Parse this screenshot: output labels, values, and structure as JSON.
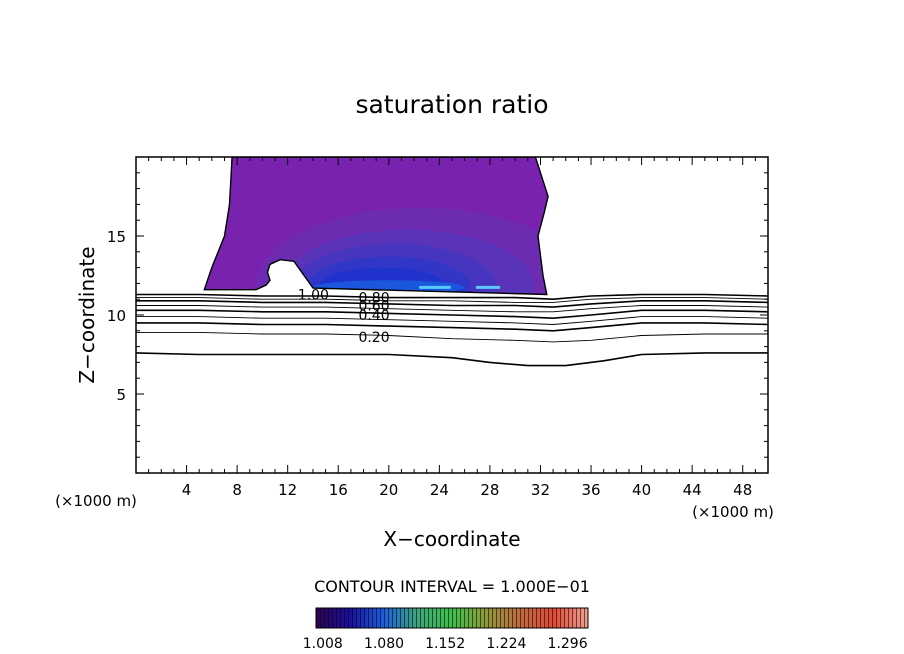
{
  "chart_data": {
    "type": "heatmap",
    "title": "saturation ratio",
    "xlabel": "X−coordinate",
    "ylabel": "Z−coordinate",
    "x_unit_left": "(×1000 m)",
    "x_unit_right": "(×1000 m)",
    "xlim": [
      0,
      50
    ],
    "ylim": [
      0,
      20
    ],
    "x_ticks": [
      4,
      8,
      12,
      16,
      20,
      24,
      28,
      32,
      36,
      40,
      44,
      48
    ],
    "y_ticks": [
      5,
      10,
      15
    ],
    "contour_interval_label": "CONTOUR INTERVAL = 1.000E−01",
    "colorbar_labels": [
      "1.008",
      "1.080",
      "1.152",
      "1.224",
      "1.296"
    ],
    "colorbar_range": [
      1.0,
      1.32
    ],
    "contour_labels": [
      {
        "text": "1.00",
        "x": 12.8,
        "z": 11.3
      },
      {
        "text": "0.80",
        "x": 17.6,
        "z": 11.1
      },
      {
        "text": "0.60",
        "x": 17.6,
        "z": 10.6
      },
      {
        "text": "0.40",
        "x": 17.6,
        "z": 10.0
      },
      {
        "text": "0.20",
        "x": 17.6,
        "z": 8.6
      }
    ],
    "contours": [
      {
        "level": 1.0,
        "points": [
          [
            0,
            11.3
          ],
          [
            5,
            11.3
          ],
          [
            10,
            11.2
          ],
          [
            15,
            11.2
          ],
          [
            20,
            11.1
          ],
          [
            25,
            11.1
          ],
          [
            30,
            11.1
          ],
          [
            33,
            11.0
          ],
          [
            36,
            11.2
          ],
          [
            40,
            11.3
          ],
          [
            45,
            11.3
          ],
          [
            50,
            11.2
          ]
        ]
      },
      {
        "level": 0.9,
        "points": [
          [
            0,
            11.1
          ],
          [
            5,
            11.1
          ],
          [
            10,
            11.0
          ],
          [
            15,
            11.0
          ],
          [
            20,
            10.9
          ],
          [
            25,
            10.9
          ],
          [
            30,
            10.8
          ],
          [
            33,
            10.8
          ],
          [
            36,
            11.0
          ],
          [
            40,
            11.1
          ],
          [
            45,
            11.1
          ],
          [
            50,
            11.0
          ]
        ]
      },
      {
        "level": 0.8,
        "points": [
          [
            0,
            10.9
          ],
          [
            5,
            10.9
          ],
          [
            10,
            10.8
          ],
          [
            15,
            10.8
          ],
          [
            20,
            10.7
          ],
          [
            25,
            10.6
          ],
          [
            30,
            10.6
          ],
          [
            33,
            10.5
          ],
          [
            36,
            10.7
          ],
          [
            40,
            10.9
          ],
          [
            45,
            10.9
          ],
          [
            50,
            10.8
          ]
        ]
      },
      {
        "level": 0.7,
        "points": [
          [
            0,
            10.6
          ],
          [
            5,
            10.6
          ],
          [
            10,
            10.5
          ],
          [
            15,
            10.5
          ],
          [
            20,
            10.4
          ],
          [
            25,
            10.3
          ],
          [
            30,
            10.2
          ],
          [
            33,
            10.2
          ],
          [
            36,
            10.4
          ],
          [
            40,
            10.6
          ],
          [
            45,
            10.6
          ],
          [
            50,
            10.5
          ]
        ]
      },
      {
        "level": 0.6,
        "points": [
          [
            0,
            10.3
          ],
          [
            5,
            10.3
          ],
          [
            10,
            10.2
          ],
          [
            15,
            10.2
          ],
          [
            20,
            10.1
          ],
          [
            25,
            10.0
          ],
          [
            30,
            9.9
          ],
          [
            33,
            9.8
          ],
          [
            36,
            10.0
          ],
          [
            40,
            10.3
          ],
          [
            45,
            10.3
          ],
          [
            50,
            10.2
          ]
        ]
      },
      {
        "level": 0.5,
        "points": [
          [
            0,
            9.9
          ],
          [
            5,
            9.9
          ],
          [
            10,
            9.8
          ],
          [
            15,
            9.8
          ],
          [
            20,
            9.7
          ],
          [
            25,
            9.6
          ],
          [
            30,
            9.5
          ],
          [
            33,
            9.4
          ],
          [
            36,
            9.6
          ],
          [
            40,
            9.9
          ],
          [
            45,
            9.9
          ],
          [
            50,
            9.8
          ]
        ]
      },
      {
        "level": 0.4,
        "points": [
          [
            0,
            9.5
          ],
          [
            5,
            9.5
          ],
          [
            10,
            9.4
          ],
          [
            15,
            9.4
          ],
          [
            20,
            9.3
          ],
          [
            25,
            9.2
          ],
          [
            30,
            9.1
          ],
          [
            33,
            9.0
          ],
          [
            36,
            9.2
          ],
          [
            40,
            9.5
          ],
          [
            45,
            9.5
          ],
          [
            50,
            9.4
          ]
        ]
      },
      {
        "level": 0.3,
        "points": [
          [
            0,
            8.9
          ],
          [
            5,
            8.9
          ],
          [
            10,
            8.8
          ],
          [
            15,
            8.8
          ],
          [
            20,
            8.7
          ],
          [
            25,
            8.5
          ],
          [
            30,
            8.4
          ],
          [
            33,
            8.3
          ],
          [
            36,
            8.4
          ],
          [
            40,
            8.7
          ],
          [
            45,
            8.8
          ],
          [
            50,
            8.8
          ]
        ]
      },
      {
        "level": 0.2,
        "points": [
          [
            0,
            7.6
          ],
          [
            5,
            7.5
          ],
          [
            10,
            7.5
          ],
          [
            15,
            7.5
          ],
          [
            20,
            7.5
          ],
          [
            25,
            7.3
          ],
          [
            28,
            7.0
          ],
          [
            31,
            6.8
          ],
          [
            34,
            6.8
          ],
          [
            37,
            7.1
          ],
          [
            40,
            7.5
          ],
          [
            45,
            7.6
          ],
          [
            50,
            7.6
          ]
        ]
      }
    ],
    "region": {
      "boundary": [
        [
          7.6,
          20
        ],
        [
          7.4,
          17
        ],
        [
          7.0,
          15
        ],
        [
          6.0,
          13
        ],
        [
          5.4,
          11.6
        ],
        [
          9.5,
          11.6
        ],
        [
          10.3,
          11.9
        ],
        [
          10.6,
          12.2
        ],
        [
          10.4,
          12.7
        ],
        [
          10.6,
          13.2
        ],
        [
          11.4,
          13.5
        ],
        [
          12.5,
          13.4
        ],
        [
          14,
          11.7
        ],
        [
          32.5,
          11.3
        ],
        [
          32.2,
          12.5
        ],
        [
          31.8,
          15
        ],
        [
          32.3,
          16.5
        ],
        [
          32.6,
          17.5
        ],
        [
          32.0,
          19
        ],
        [
          31.6,
          20
        ]
      ],
      "cloud_top_color": "#7a22b0",
      "layers": [
        {
          "value": 1.02,
          "color": "#6d2bb2",
          "cx": 22.5,
          "cz": 11.8,
          "rx": 13.0,
          "rz": 5.0
        },
        {
          "value": 1.05,
          "color": "#5a34b8",
          "cx": 21.5,
          "cz": 11.8,
          "rx": 10.0,
          "rz": 3.6
        },
        {
          "value": 1.08,
          "color": "#4636bf",
          "cx": 20.5,
          "cz": 11.8,
          "rx": 8.0,
          "rz": 2.7
        },
        {
          "value": 1.11,
          "color": "#3136c6",
          "cx": 20.0,
          "cz": 11.8,
          "rx": 6.5,
          "rz": 1.9
        },
        {
          "value": 1.14,
          "color": "#1f33cc",
          "cx": 19.5,
          "cz": 11.8,
          "rx": 5.0,
          "rz": 1.2
        },
        {
          "value": 1.17,
          "color": "#1a57dd",
          "cx": 20.0,
          "cz": 11.75,
          "rx": 6.0,
          "rz": 0.45
        }
      ],
      "streaks": [
        {
          "color": "#5ac8ff",
          "x0": 22.5,
          "x1": 24.8,
          "z": 11.75
        },
        {
          "color": "#5ac8ff",
          "x0": 27.0,
          "x1": 28.7,
          "z": 11.75
        }
      ]
    },
    "colorbar_stops": [
      "#300050",
      "#1a10a0",
      "#1d5fe0",
      "#3fa57a",
      "#3fc04a",
      "#8e9a3a",
      "#c06a40",
      "#e24a38",
      "#f0a090"
    ]
  }
}
